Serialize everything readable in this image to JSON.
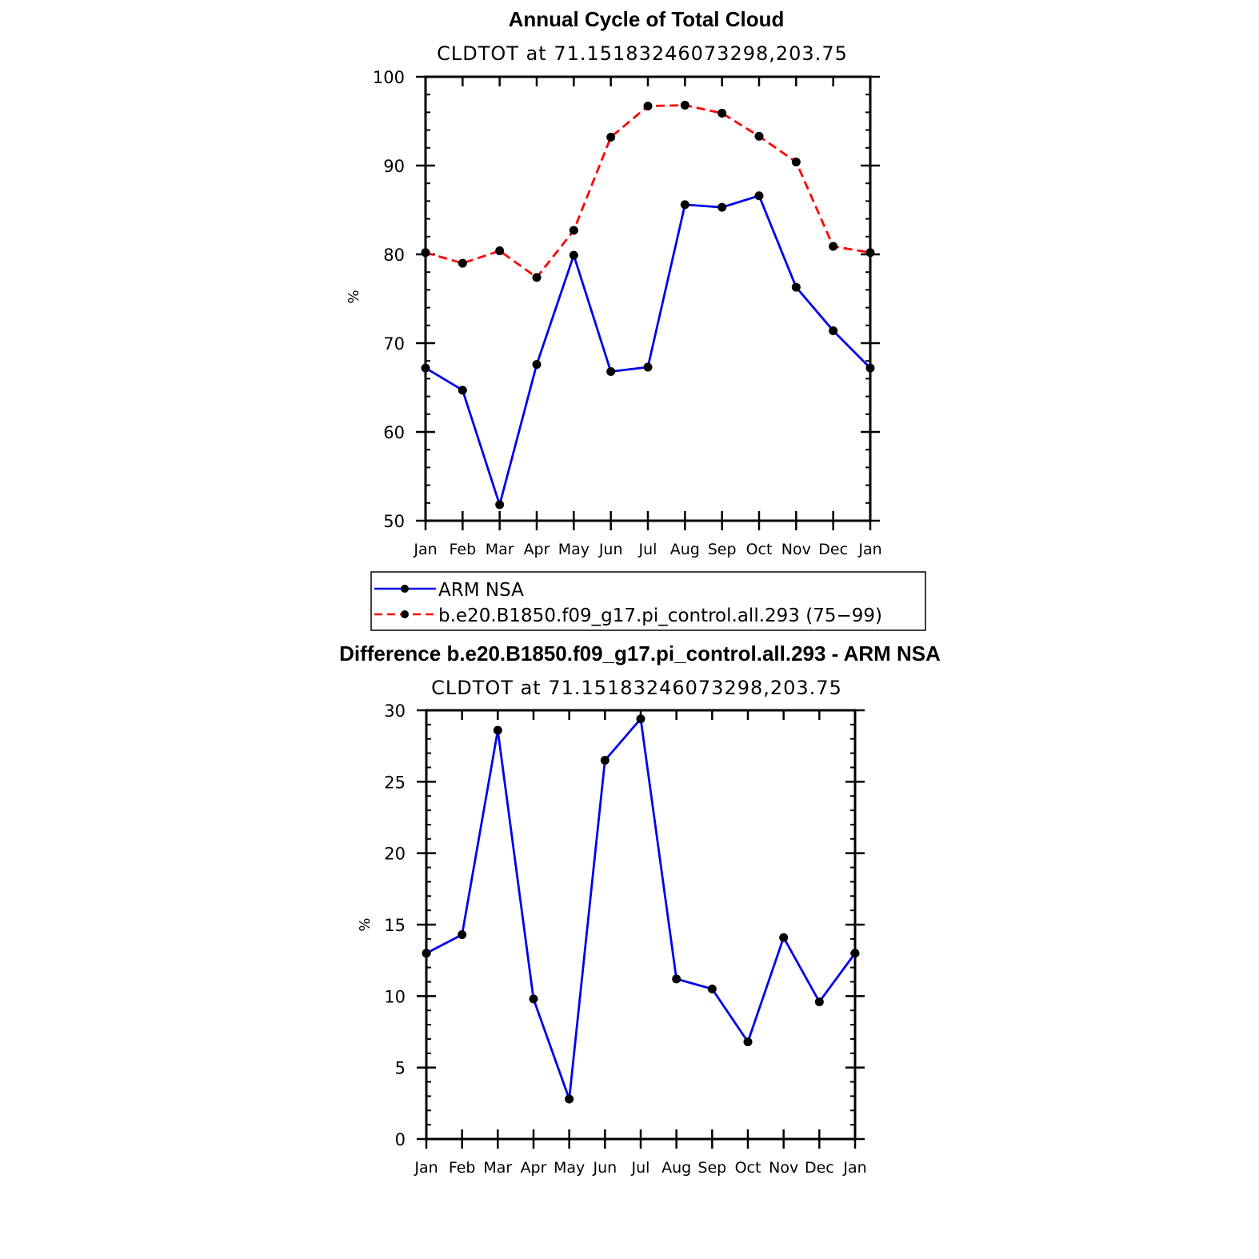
{
  "chart_data": [
    {
      "type": "line",
      "title": "Annual Cycle of Total Cloud",
      "subtitle": "CLDTOT at 71.15183246073298,203.75",
      "ylabel": "%",
      "ylim": [
        50,
        100
      ],
      "yticks": [
        50,
        60,
        70,
        80,
        90,
        100
      ],
      "yminor_step": 2,
      "categories": [
        "Jan",
        "Feb",
        "Mar",
        "Apr",
        "May",
        "Jun",
        "Jul",
        "Aug",
        "Sep",
        "Oct",
        "Nov",
        "Dec",
        "Jan"
      ],
      "series": [
        {
          "name": "ARM NSA",
          "color": "#0000ee",
          "dash": "solid",
          "values": [
            67.2,
            64.7,
            51.8,
            67.6,
            79.9,
            66.8,
            67.3,
            85.6,
            85.3,
            86.6,
            76.3,
            71.4,
            67.2
          ]
        },
        {
          "name": "b.e20.B1850.f09_g17.pi_control.all.293 (75-99)",
          "color": "#ff0000",
          "dash": "dashed",
          "values": [
            80.2,
            79.0,
            80.4,
            77.4,
            82.7,
            93.2,
            96.7,
            96.8,
            95.9,
            93.3,
            90.4,
            80.9,
            80.2
          ]
        }
      ],
      "legend": {
        "entries": [
          "ARM NSA",
          "b.e20.B1850.f09_g17.pi_control.all.293 (75−99)"
        ]
      }
    },
    {
      "type": "line",
      "title": "Difference b.e20.B1850.f09_g17.pi_control.all.293 - ARM NSA",
      "subtitle": "CLDTOT at 71.15183246073298,203.75",
      "ylabel": "%",
      "ylim": [
        0,
        30
      ],
      "yticks": [
        0,
        5,
        10,
        15,
        20,
        25,
        30
      ],
      "yminor_step": 1,
      "categories": [
        "Jan",
        "Feb",
        "Mar",
        "Apr",
        "May",
        "Jun",
        "Jul",
        "Aug",
        "Sep",
        "Oct",
        "Nov",
        "Dec",
        "Jan"
      ],
      "series": [
        {
          "name": "Difference",
          "color": "#0000ee",
          "dash": "solid",
          "values": [
            13.0,
            14.3,
            28.6,
            9.8,
            2.8,
            26.5,
            29.4,
            11.2,
            10.5,
            6.8,
            14.1,
            9.6,
            13.0
          ]
        }
      ]
    }
  ]
}
